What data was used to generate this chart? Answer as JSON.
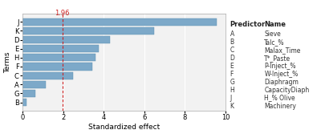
{
  "terms": [
    "B",
    "G",
    "A",
    "C",
    "F",
    "H",
    "E",
    "D",
    "K",
    "J"
  ],
  "values": [
    0.18,
    0.65,
    1.15,
    2.5,
    3.45,
    3.6,
    3.75,
    4.3,
    6.5,
    9.55
  ],
  "bar_color": "#7da9c9",
  "bar_edge_color": "#5a8db0",
  "xlabel": "Standardized effect",
  "ylabel": "Terms",
  "xlim": [
    0,
    10
  ],
  "ref_line": 1.96,
  "ref_line_label": "1.96",
  "ref_line_color": "#cc2222",
  "xticks": [
    0,
    2,
    4,
    6,
    8,
    10
  ],
  "predictor_col": [
    "A",
    "B",
    "C",
    "D",
    "E",
    "F",
    "G",
    "H",
    "J",
    "K"
  ],
  "name_col": [
    "Sieve",
    "Talc_%",
    "Malax_Time",
    "T*_Paste",
    "P-Inject_%",
    "W-Inject_%",
    "Diaphragm",
    "CapacityDiaph",
    "H_% Olive",
    "Machinery"
  ],
  "legend_bg": "#e5e5e5",
  "plot_bg": "#f2f2f2",
  "grid_color": "#ffffff",
  "axis_fontsize": 6.5,
  "tick_fontsize": 6,
  "legend_fontsize": 5.5,
  "legend_header_fontsize": 6
}
